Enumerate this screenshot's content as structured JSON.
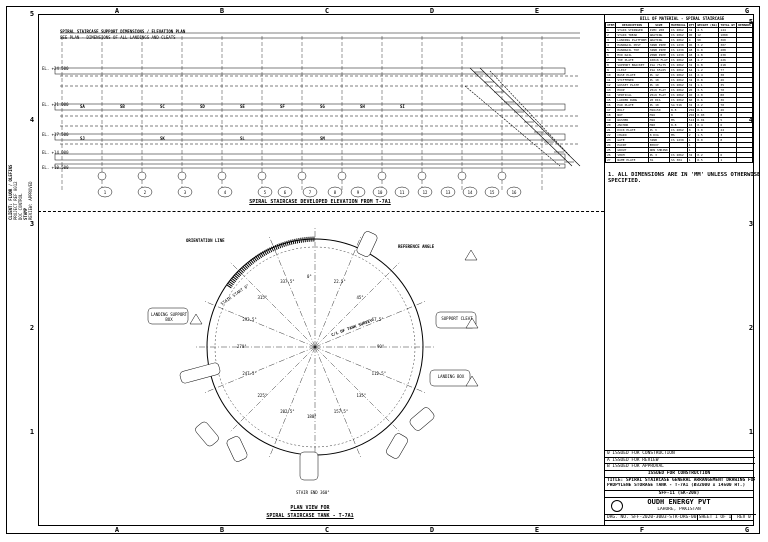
{
  "border": {
    "columns_top": [
      "A",
      "B",
      "C",
      "D",
      "E",
      "F",
      "G"
    ],
    "columns_bottom": [
      "A",
      "B",
      "C",
      "D",
      "E",
      "F",
      "G"
    ],
    "rows_left": [
      "5",
      "4",
      "3",
      "2",
      "1"
    ],
    "rows_right": [
      "5",
      "4",
      "3",
      "2",
      "1"
    ]
  },
  "left_strip": {
    "lines": [
      "CLIENT: FLUOR / OLEFINS",
      "PROJECT REF 0012",
      "DOC CONTROL",
      "STAMP",
      "REVIEW: APPROVED"
    ]
  },
  "elevation": {
    "top_dim_1": "SPIRAL STAIRCASE SUPPORT DIMENSIONS / ELEVATION PLAN",
    "top_dim_2": "SEE PLAN  -  DIMENSIONS OF ALL LANDINGS AND CLEATS",
    "level_labels": [
      "EL. +24.500",
      "EL. +21.000",
      "EL. +17.500",
      "EL. +14.000",
      "EL. +10.500"
    ],
    "bay_labels": [
      "SA",
      "SB",
      "SC",
      "SD",
      "SE",
      "SF",
      "SG",
      "SH",
      "SI",
      "SJ",
      "SK",
      "SL",
      "SM"
    ],
    "bubbles": [
      "1",
      "2",
      "3",
      "4",
      "5",
      "6",
      "7",
      "8",
      "9",
      "10",
      "11",
      "12",
      "13",
      "14",
      "15",
      "16"
    ],
    "caption": "SPIRAL STAIRCASE DEVELOPED ELEVATION FROM T-7A1"
  },
  "bom": {
    "title": "BILL OF MATERIAL - SPIRAL STAIRCASE",
    "headers": [
      "ITEM",
      "DESCRIPTION",
      "SIZE",
      "MATERIAL",
      "QTY",
      "WEIGHT (KG)",
      "TOTAL WT",
      "REMARKS"
    ],
    "rows": [
      [
        "1",
        "STAIR STRINGER",
        "ISMC 200",
        "IS 2062",
        "32",
        "4.5",
        "144",
        ""
      ],
      [
        "2",
        "STAIR TREAD",
        "GRATING",
        "IS 2062",
        "90",
        "12",
        "1080",
        ""
      ],
      [
        "3",
        "LANDING PLATFORM",
        "GRATING",
        "IS 2062",
        "4",
        "90",
        "360",
        ""
      ],
      [
        "4",
        "HANDRAIL POST",
        "32NB PIPE",
        "IS 1239",
        "96",
        "3.2",
        "307",
        ""
      ],
      [
        "5",
        "HANDRAIL TOP",
        "32NB PIPE",
        "IS 1239",
        "48",
        "6.0",
        "288",
        ""
      ],
      [
        "6",
        "MID RAIL",
        "25NB PIPE",
        "IS 1239",
        "48",
        "4.8",
        "230",
        ""
      ],
      [
        "7",
        "TOE PLATE",
        "100x6 FLAT",
        "IS 2062",
        "48",
        "4.7",
        "226",
        ""
      ],
      [
        "8",
        "SUPPORT BRACKET",
        "ISA 75x75",
        "IS 2062",
        "32",
        "6.8",
        "218",
        ""
      ],
      [
        "9",
        "CLEAT",
        "ISA 65x65",
        "IS 2062",
        "64",
        "1.2",
        "77",
        ""
      ],
      [
        "10",
        "BASE PLATE",
        "PL 12",
        "IS 2062",
        "16",
        "2.4",
        "38",
        ""
      ],
      [
        "11",
        "STIFFENER",
        "PL 10",
        "IS 2062",
        "32",
        "0.8",
        "26",
        ""
      ],
      [
        "12",
        "GUSSET PLATE",
        "PL 10",
        "IS 2062",
        "32",
        "1.1",
        "35",
        ""
      ],
      [
        "13",
        "HOOP",
        "25x6 FLAT",
        "IS 2062",
        "20",
        "3.5",
        "70",
        ""
      ],
      [
        "14",
        "VERTICAL",
        "25x6 FLAT",
        "IS 2062",
        "40",
        "2.0",
        "80",
        ""
      ],
      [
        "15",
        "LADDER RUNG",
        "20 DIA",
        "IS 2062",
        "60",
        "0.6",
        "36",
        ""
      ],
      [
        "16",
        "PAD PLATE",
        "PL 10",
        "SA 516",
        "32",
        "2.2",
        "70",
        ""
      ],
      [
        "17",
        "BOLT",
        "M16x50",
        "8.8",
        "256",
        "0.1",
        "26",
        ""
      ],
      [
        "18",
        "NUT",
        "M16",
        "8",
        "256",
        "0.03",
        "8",
        ""
      ],
      [
        "19",
        "WASHER",
        "M16",
        "MS",
        "512",
        "0.01",
        "5",
        ""
      ],
      [
        "20",
        "ANCHOR",
        "M20",
        "8.8",
        "16",
        "0.4",
        "6",
        ""
      ],
      [
        "21",
        "KICK PLATE",
        "PL 6",
        "IS 2062",
        "8",
        "3.0",
        "24",
        ""
      ],
      [
        "22",
        "CHAIN",
        "8 DIA",
        "MS",
        "2",
        "1.5",
        "3",
        ""
      ],
      [
        "23",
        "GATE",
        "32NB",
        "IS 1239",
        "1",
        "8.0",
        "8",
        ""
      ],
      [
        "24",
        "PAINT",
        "EPOXY",
        "",
        "1",
        "",
        "",
        ""
      ],
      [
        "25",
        "GROUT",
        "NON SHRINK",
        "",
        "1",
        "",
        "",
        ""
      ],
      [
        "26",
        "SHIM",
        "PL 3",
        "IS 2062",
        "32",
        "0.2",
        "6",
        ""
      ],
      [
        "27",
        "NAME PLATE",
        "SS",
        "SS 304",
        "1",
        "0.5",
        "1",
        ""
      ]
    ]
  },
  "notes": {
    "n1": "1. ALL DIMENSIONS ARE IN 'MM' UNLESS OTHERWISE SPECIFIED."
  },
  "plan": {
    "label_top_left": "ORIENTATION LINE",
    "label_top_right": "REFERENCE ANGLE",
    "label_center": "C/L OF TANK SURVEY",
    "stair_label": "STAIR START 0°",
    "left_box": "LANDING SUPPORT BOX",
    "right_box_1": "SUPPORT CLEAT",
    "right_box_2": "LANDING BOX",
    "bottom_label": "STAIR END 360°",
    "caption_1": "PLAN VIEW FOR",
    "caption_2": "SPIRAL STAIRCASE TANK - T-7A1",
    "angle_labels": [
      "0°",
      "22.5°",
      "45°",
      "67.5°",
      "90°",
      "112.5°",
      "135°",
      "157.5°",
      "180°",
      "202.5°",
      "225°",
      "247.5°",
      "270°",
      "292.5°",
      "315°",
      "337.5°"
    ]
  },
  "title_block": {
    "rev_rows": [
      "0  ISSUED FOR CONSTRUCTION",
      "A  ISSUED FOR REVIEW",
      "B  ISSUED FOR APPROVAL"
    ],
    "status": "ISSUED FOR CONSTRUCTION",
    "title_1": "TITLE: SPIRAL STAIRCASE GENERAL ARRANGEMENT DRAWING FOR",
    "title_2": "PROPYLENE STORAGE TANK - T-7A1 (Ø32000 x 14500 HT.)",
    "drg_ref": "SFF-11 (5K-208)",
    "company": "OUDH ENERGY PVT",
    "location": "LAHORE, PAKISTAN",
    "drawing_no": "DRG. NO.  SFF-2020-3003-STR-DRG-001-005",
    "sheet": "SHEET 1 OF 1",
    "rev": "REV 0"
  }
}
